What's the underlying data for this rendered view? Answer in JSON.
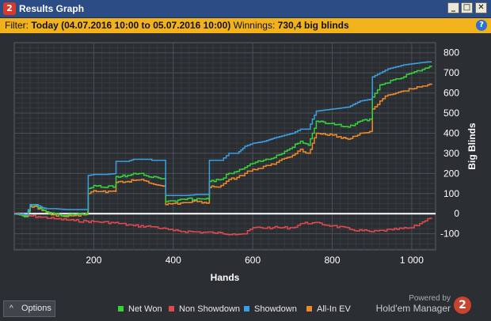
{
  "window": {
    "title": "Results Graph",
    "icon_glyph": "2",
    "minimize_glyph": "_",
    "maximize_glyph": "□",
    "close_glyph": "✕"
  },
  "filter": {
    "prefix": "Filter:",
    "value": "Today (04.07.2016 10:00 to 05.07.2016 10:00)",
    "winnings_label": "Winnings:",
    "winnings_value": "730,4 big blinds",
    "help_glyph": "?"
  },
  "chart_data": {
    "type": "line",
    "xlabel": "Hands",
    "ylabel": "Big Blinds",
    "xlim": [
      0,
      1060
    ],
    "ylim": [
      -180,
      850
    ],
    "x_ticks": [
      200,
      400,
      600,
      800,
      1000
    ],
    "x_tick_labels": [
      "200",
      "400",
      "600",
      "800",
      "1 000"
    ],
    "y_ticks": [
      -100,
      0,
      100,
      200,
      300,
      400,
      500,
      600,
      700,
      800
    ],
    "y_tick_labels": [
      "-100",
      "0",
      "100",
      "200",
      "300",
      "400",
      "500",
      "600",
      "700",
      "800"
    ],
    "grid": true,
    "zero_line": true,
    "series": [
      {
        "name": "Showdown",
        "color": "#3a9ee0",
        "x": [
          0,
          30,
          40,
          55,
          70,
          80,
          90,
          100,
          130,
          150,
          185,
          186,
          200,
          230,
          255,
          256,
          285,
          300,
          345,
          346,
          380,
          381,
          430,
          460,
          490,
          491,
          520,
          540,
          560,
          575,
          580,
          600,
          630,
          645,
          660,
          680,
          700,
          720,
          740,
          750,
          760,
          800,
          840,
          870,
          900,
          901,
          920,
          940,
          960,
          980,
          1000,
          1020,
          1040,
          1050
        ],
        "y": [
          0,
          -5,
          45,
          45,
          30,
          25,
          25,
          25,
          20,
          20,
          20,
          190,
          195,
          195,
          200,
          260,
          260,
          270,
          270,
          265,
          265,
          90,
          90,
          95,
          95,
          265,
          265,
          300,
          300,
          325,
          335,
          350,
          360,
          370,
          380,
          390,
          400,
          420,
          420,
          470,
          510,
          520,
          530,
          560,
          570,
          680,
          700,
          720,
          730,
          740,
          745,
          750,
          755,
          755
        ]
      },
      {
        "name": "Net Won",
        "color": "#35d23c",
        "x": [
          0,
          20,
          30,
          40,
          55,
          70,
          80,
          100,
          130,
          150,
          180,
          185,
          186,
          200,
          230,
          255,
          256,
          285,
          300,
          320,
          345,
          380,
          381,
          430,
          460,
          490,
          491,
          520,
          540,
          560,
          580,
          600,
          620,
          640,
          660,
          680,
          700,
          720,
          740,
          750,
          760,
          800,
          840,
          870,
          900,
          901,
          920,
          940,
          960,
          980,
          1000,
          1020,
          1040,
          1050
        ],
        "y": [
          0,
          -10,
          -15,
          40,
          40,
          20,
          10,
          0,
          -10,
          -5,
          0,
          10,
          125,
          140,
          130,
          140,
          185,
          190,
          200,
          200,
          180,
          175,
          60,
          70,
          75,
          70,
          160,
          170,
          200,
          210,
          230,
          250,
          260,
          270,
          290,
          310,
          330,
          360,
          340,
          400,
          460,
          450,
          430,
          460,
          470,
          580,
          640,
          650,
          670,
          680,
          700,
          710,
          725,
          730
        ]
      },
      {
        "name": "All-In EV",
        "color": "#ef8a2a",
        "x": [
          0,
          20,
          30,
          40,
          55,
          70,
          80,
          100,
          130,
          150,
          180,
          185,
          186,
          200,
          230,
          255,
          256,
          285,
          300,
          320,
          345,
          380,
          381,
          430,
          460,
          490,
          491,
          520,
          540,
          560,
          580,
          600,
          620,
          640,
          660,
          680,
          700,
          720,
          740,
          750,
          760,
          800,
          840,
          870,
          900,
          901,
          920,
          940,
          960,
          980,
          1000,
          1020,
          1040,
          1050
        ],
        "y": [
          0,
          -10,
          -15,
          35,
          35,
          15,
          5,
          -5,
          -15,
          -10,
          -5,
          5,
          100,
          115,
          105,
          110,
          155,
          160,
          165,
          170,
          150,
          140,
          45,
          55,
          60,
          55,
          130,
          140,
          170,
          180,
          200,
          220,
          225,
          240,
          255,
          275,
          290,
          320,
          300,
          350,
          400,
          390,
          370,
          400,
          410,
          520,
          560,
          590,
          600,
          610,
          620,
          630,
          640,
          640
        ]
      },
      {
        "name": "Non Showdown",
        "color": "#e0494d",
        "x": [
          0,
          30,
          60,
          100,
          150,
          200,
          250,
          300,
          350,
          400,
          450,
          500,
          550,
          580,
          600,
          650,
          700,
          720,
          750,
          800,
          850,
          900,
          950,
          1000,
          1020,
          1040,
          1050
        ],
        "y": [
          0,
          -10,
          -15,
          -25,
          -35,
          -40,
          -45,
          -60,
          -65,
          -85,
          -90,
          -95,
          -100,
          -100,
          -70,
          -70,
          -70,
          -50,
          -45,
          -60,
          -80,
          -90,
          -80,
          -70,
          -50,
          -25,
          -25
        ]
      }
    ],
    "legend": [
      "Net Won",
      "Non Showdown",
      "Showdown",
      "All-In EV"
    ],
    "legend_position": "bottom-center"
  },
  "footer": {
    "options_label": "Options",
    "options_chevron": "^",
    "powered_by": "Powered by",
    "brand": "Hold'em Manager",
    "brand_glyph": "2"
  }
}
